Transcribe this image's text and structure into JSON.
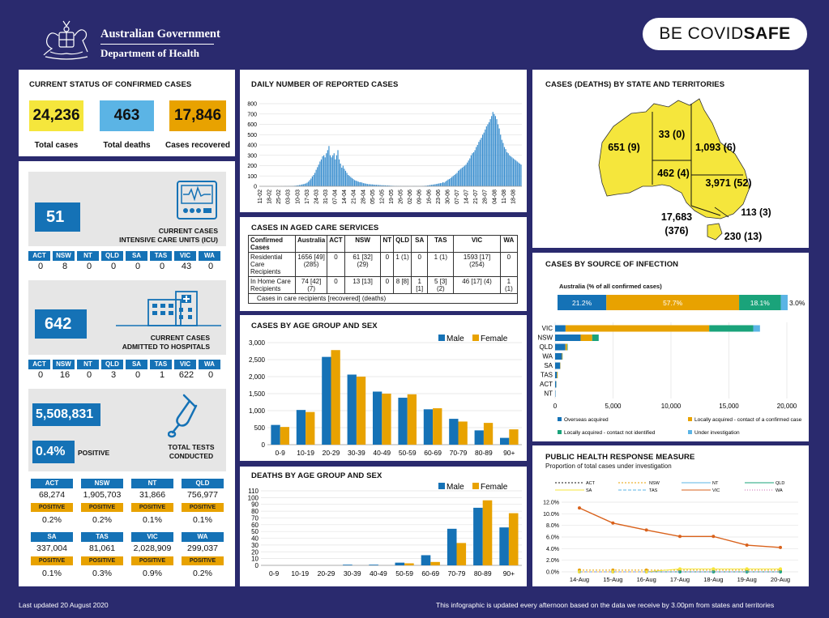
{
  "header": {
    "gov_line1": "Australian Government",
    "gov_line2": "Department of Health",
    "covid_prefix": "BE COVID",
    "covid_suffix": "SAFE"
  },
  "current_status": {
    "title": "CURRENT STATUS OF CONFIRMED CASES",
    "total_cases": "24,236",
    "total_cases_label": "Total cases",
    "total_deaths": "463",
    "total_deaths_label": "Total deaths",
    "recovered": "17,846",
    "recovered_label": "Cases recovered",
    "colors": {
      "cases": "#f5e63c",
      "deaths": "#5bb4e5",
      "recovered": "#e8a200"
    }
  },
  "states": [
    "ACT",
    "NSW",
    "NT",
    "QLD",
    "SA",
    "TAS",
    "VIC",
    "WA"
  ],
  "icu": {
    "value": "51",
    "label1": "CURRENT CASES",
    "label2": "INTENSIVE CARE UNITS (ICU)",
    "by_state": [
      "0",
      "8",
      "0",
      "0",
      "0",
      "0",
      "43",
      "0"
    ]
  },
  "hospital": {
    "value": "642",
    "label1": "CURRENT CASES",
    "label2": "ADMITTED TO HOSPITALS",
    "by_state": [
      "0",
      "16",
      "0",
      "3",
      "0",
      "1",
      "622",
      "0"
    ]
  },
  "tests": {
    "value": "5,508,831",
    "positive_pct": "0.4%",
    "positive_label": "POSITIVE",
    "label1": "TOTAL TESTS",
    "label2": "CONDUCTED",
    "positive_word": "POSITIVE",
    "row1": [
      {
        "state": "ACT",
        "tests": "68,274",
        "pct": "0.2%"
      },
      {
        "state": "NSW",
        "tests": "1,905,703",
        "pct": "0.2%"
      },
      {
        "state": "NT",
        "tests": "31,866",
        "pct": "0.1%"
      },
      {
        "state": "QLD",
        "tests": "756,977",
        "pct": "0.1%"
      }
    ],
    "row2": [
      {
        "state": "SA",
        "tests": "337,004",
        "pct": "0.1%"
      },
      {
        "state": "TAS",
        "tests": "81,061",
        "pct": "0.3%"
      },
      {
        "state": "VIC",
        "tests": "2,028,909",
        "pct": "0.9%"
      },
      {
        "state": "WA",
        "tests": "299,037",
        "pct": "0.2%"
      }
    ]
  },
  "daily": {
    "title": "DAILY NUMBER OF REPORTED CASES"
  },
  "aged": {
    "title": "CASES IN AGED CARE SERVICES",
    "headers": [
      "Confirmed Cases",
      "Australia",
      "ACT",
      "NSW",
      "NT",
      "QLD",
      "SA",
      "TAS",
      "VIC",
      "WA"
    ],
    "row1": [
      "Residential Care Recipients",
      "1656 [49] (285)",
      "0",
      "61 [32] (29)",
      "0",
      "1 (1)",
      "0",
      "1 (1)",
      "1593 [17] (254)",
      "0"
    ],
    "row2": [
      "In Home Care Recipients",
      "74 [42] (7)",
      "0",
      "13 [13]",
      "0",
      "8 [8]",
      "1 [1]",
      "5 [3] (2)",
      "46 [17] (4)",
      "1 (1)"
    ],
    "note": "Cases in care recipients [recovered] (deaths)"
  },
  "age_cases": {
    "title": "CASES BY AGE GROUP AND SEX"
  },
  "age_deaths": {
    "title": "DEATHS BY AGE GROUP AND SEX"
  },
  "map": {
    "title": "CASES (DEATHS) BY STATE AND TERRITORIES",
    "wa": "651 (9)",
    "nt": "33 (0)",
    "qld": "1,093 (6)",
    "sa": "462 (4)",
    "nsw": "3,971 (52)",
    "act": "113 (3)",
    "vic1": "17,683",
    "vic2": "(376)",
    "tas": "230 (13)"
  },
  "source": {
    "title": "CASES BY SOURCE OF INFECTION",
    "subtitle": "Australia (% of all confirmed cases)",
    "legend": [
      "Overseas acquired",
      "Locally acquired - contact of a confirmed case",
      "Locally acquired - contact not identified",
      "Under investigation"
    ]
  },
  "phrm": {
    "title": "PUBLIC HEALTH RESPONSE MEASURE",
    "subtitle": "Proportion of total cases under investigation"
  },
  "footer": {
    "left": "Last updated 20 August 2020",
    "right": "This infographic is updated every afternoon based on the data we receive by 3.00pm from states and territories"
  },
  "chart_data": [
    {
      "type": "bar",
      "title": "DAILY NUMBER OF REPORTED CASES",
      "ylim": [
        0,
        800
      ],
      "yticks": [
        0,
        100,
        200,
        300,
        400,
        500,
        600,
        700,
        800
      ],
      "x_tick_labels": [
        "11-02",
        "18-02",
        "25-02",
        "03-03",
        "10-03",
        "17-03",
        "24-03",
        "31-03",
        "07-04",
        "14-04",
        "21-04",
        "28-04",
        "05-05",
        "12-05",
        "19-05",
        "26-05",
        "02-06",
        "09-06",
        "16-06",
        "23-06",
        "30-06",
        "07-07",
        "14-07",
        "21-07",
        "28-07",
        "04-08",
        "11-08",
        "18-08"
      ],
      "values": [
        0,
        0,
        0,
        0,
        0,
        0,
        0,
        0,
        0,
        0,
        0,
        0,
        0,
        0,
        0,
        0,
        0,
        1,
        0,
        1,
        2,
        1,
        2,
        3,
        2,
        4,
        3,
        5,
        6,
        8,
        10,
        12,
        14,
        18,
        20,
        24,
        28,
        35,
        45,
        60,
        75,
        95,
        110,
        130,
        160,
        185,
        210,
        240,
        260,
        290,
        300,
        280,
        320,
        350,
        390,
        300,
        280,
        300,
        320,
        260,
        300,
        350,
        260,
        220,
        180,
        200,
        170,
        150,
        130,
        110,
        100,
        90,
        80,
        70,
        60,
        55,
        50,
        45,
        40,
        40,
        35,
        30,
        28,
        25,
        22,
        20,
        20,
        18,
        18,
        16,
        15,
        14,
        14,
        12,
        12,
        10,
        10,
        10,
        9,
        8,
        8,
        7,
        6,
        5,
        5,
        4,
        4,
        4,
        3,
        3,
        3,
        2,
        2,
        2,
        2,
        2,
        2,
        1,
        1,
        1,
        2,
        2,
        2,
        1,
        1,
        1,
        2,
        3,
        4,
        5,
        6,
        8,
        10,
        12,
        14,
        16,
        18,
        20,
        22,
        25,
        28,
        30,
        32,
        40,
        35,
        45,
        55,
        65,
        70,
        80,
        90,
        100,
        110,
        120,
        130,
        150,
        160,
        170,
        180,
        190,
        200,
        210,
        230,
        250,
        270,
        300,
        320,
        330,
        350,
        380,
        400,
        430,
        450,
        470,
        500,
        520,
        550,
        580,
        600,
        620,
        650,
        680,
        720,
        700,
        680,
        650,
        600,
        560,
        500,
        450,
        420,
        380,
        360,
        330,
        320,
        300,
        290,
        280,
        270,
        260,
        250,
        240,
        230,
        220,
        210
      ]
    },
    {
      "type": "bar",
      "title": "CASES BY AGE GROUP AND SEX",
      "categories": [
        "0-9",
        "10-19",
        "20-29",
        "30-39",
        "40-49",
        "50-59",
        "60-69",
        "70-79",
        "80-89",
        "90+"
      ],
      "ylim": [
        0,
        3000
      ],
      "series": [
        {
          "name": "Male",
          "color": "#1572b6",
          "values": [
            580,
            1020,
            2580,
            2060,
            1560,
            1380,
            1040,
            760,
            420,
            200
          ]
        },
        {
          "name": "Female",
          "color": "#e8a200",
          "values": [
            520,
            960,
            2780,
            2000,
            1500,
            1480,
            1070,
            680,
            640,
            450
          ]
        }
      ]
    },
    {
      "type": "bar",
      "title": "DEATHS BY AGE GROUP AND SEX",
      "categories": [
        "0-9",
        "10-19",
        "20-29",
        "30-39",
        "40-49",
        "50-59",
        "60-69",
        "70-79",
        "80-89",
        "90+"
      ],
      "ylim": [
        0,
        110
      ],
      "series": [
        {
          "name": "Male",
          "color": "#1572b6",
          "values": [
            0,
            0,
            0,
            1,
            1,
            4,
            15,
            54,
            85,
            56
          ]
        },
        {
          "name": "Female",
          "color": "#e8a200",
          "values": [
            0,
            0,
            0,
            0,
            0,
            3,
            5,
            33,
            96,
            77
          ]
        }
      ]
    },
    {
      "type": "bar",
      "title": "CASES BY SOURCE OF INFECTION",
      "stacked": true,
      "overall_pct": {
        "Overseas acquired": 21.2,
        "Locally acquired - contact of a confirmed case": 57.7,
        "Locally acquired - contact not identified": 18.1,
        "Under investigation": 3.0
      },
      "overall_labels": [
        "21.2%",
        "57.7%",
        "18.1%",
        "3.0%"
      ],
      "categories": [
        "VIC",
        "NSW",
        "QLD",
        "WA",
        "SA",
        "TAS",
        "ACT",
        "NT"
      ],
      "xlim": [
        0,
        20000
      ],
      "xticks": [
        "0",
        "5,000",
        "10,000",
        "15,000",
        "20,000"
      ],
      "series": [
        {
          "name": "Overseas acquired",
          "color": "#1572b6",
          "values": [
            900,
            2200,
            890,
            590,
            440,
            160,
            100,
            32
          ]
        },
        {
          "name": "Locally acquired - contact of a confirmed case",
          "color": "#e8a200",
          "values": [
            12400,
            1000,
            140,
            40,
            20,
            60,
            10,
            0
          ]
        },
        {
          "name": "Locally acquired - contact not identified",
          "color": "#1aa37a",
          "values": [
            3800,
            560,
            50,
            15,
            2,
            5,
            3,
            1
          ]
        },
        {
          "name": "Under investigation",
          "color": "#5bb4e5",
          "values": [
            580,
            20,
            10,
            5,
            0,
            5,
            0,
            0
          ]
        }
      ]
    },
    {
      "type": "line",
      "title": "PUBLIC HEALTH RESPONSE MEASURE",
      "categories": [
        "14-Aug",
        "15-Aug",
        "16-Aug",
        "17-Aug",
        "18-Aug",
        "19-Aug",
        "20-Aug"
      ],
      "ylim": [
        0,
        12
      ],
      "yticks": [
        "0.0%",
        "2.0%",
        "4.0%",
        "6.0%",
        "8.0%",
        "10.0%",
        "12.0%"
      ],
      "series": [
        {
          "name": "ACT",
          "color": "#111111",
          "dash": "2,2",
          "values": [
            0,
            0,
            0,
            0,
            0,
            0,
            0
          ]
        },
        {
          "name": "NSW",
          "color": "#e8a200",
          "dash": "2,2",
          "values": [
            0.3,
            0.3,
            0.3,
            0.3,
            0.3,
            0.3,
            0.3
          ]
        },
        {
          "name": "NT",
          "color": "#5bb4e5",
          "values": [
            0,
            0,
            0,
            0,
            0,
            0,
            0
          ]
        },
        {
          "name": "QLD",
          "color": "#1aa37a",
          "values": [
            0,
            0,
            0,
            0,
            0,
            0,
            0
          ]
        },
        {
          "name": "SA",
          "color": "#f5e63c",
          "values": [
            0,
            0,
            0,
            0.5,
            0.5,
            0.5,
            0.5
          ]
        },
        {
          "name": "TAS",
          "color": "#5bb4e5",
          "dash": "4,2",
          "values": [
            0,
            0,
            0,
            0,
            0,
            0,
            0
          ]
        },
        {
          "name": "VIC",
          "color": "#d9621c",
          "values": [
            11.0,
            8.4,
            7.2,
            6.1,
            6.1,
            4.6,
            4.2
          ]
        },
        {
          "name": "WA",
          "color": "#c86ab0",
          "dash": "1,2",
          "values": [
            0,
            0,
            0,
            0,
            0,
            0,
            0
          ]
        }
      ]
    }
  ]
}
